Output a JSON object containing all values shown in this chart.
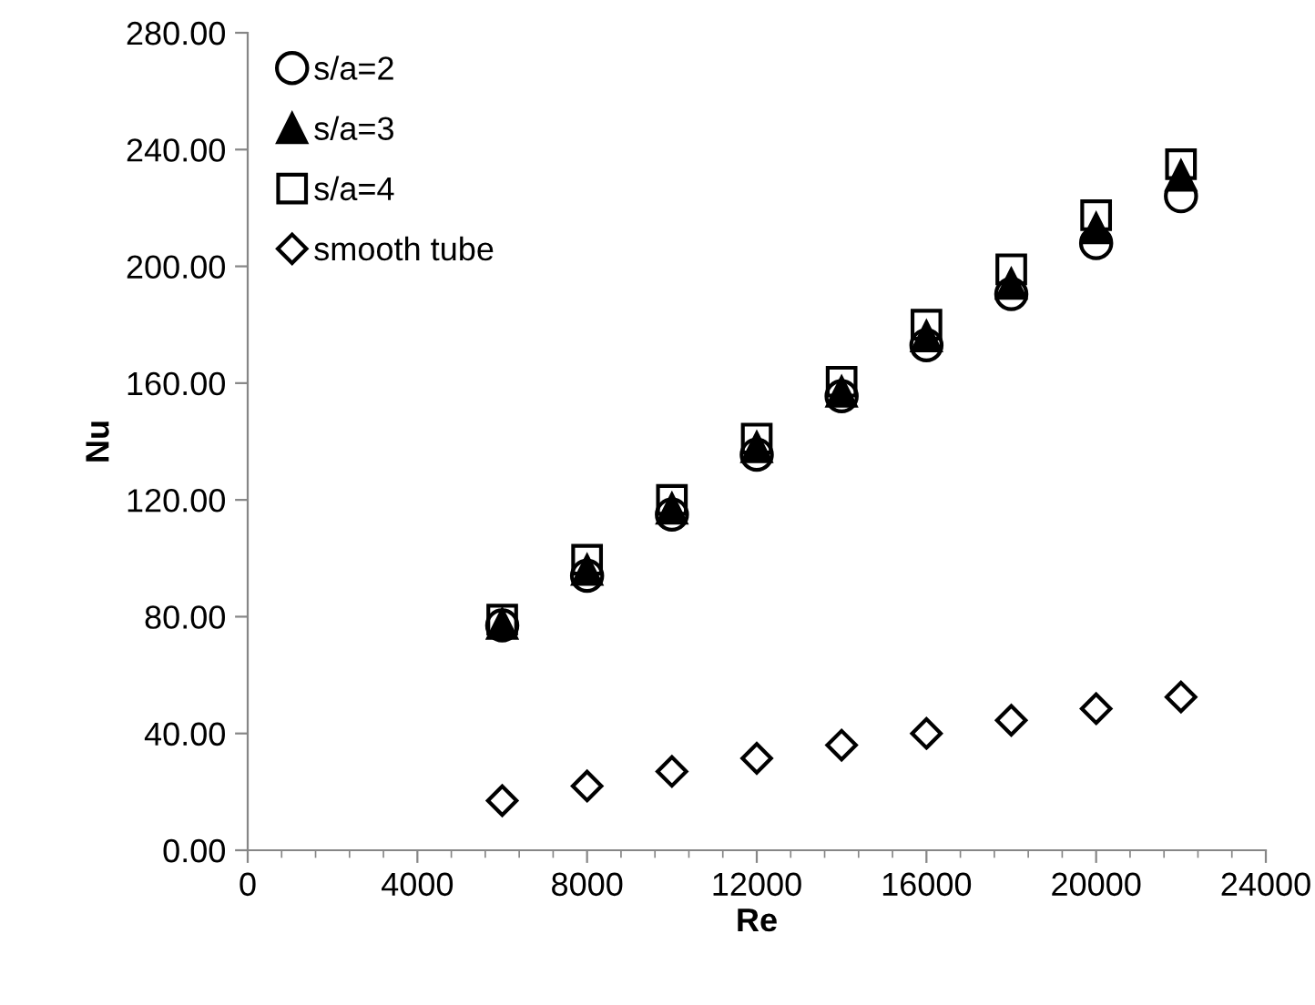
{
  "chart_data": {
    "type": "scatter",
    "xlabel": "Re",
    "ylabel": "Nu",
    "x": [
      6000,
      8000,
      10000,
      12000,
      14000,
      16000,
      18000,
      20000,
      22000
    ],
    "series": [
      {
        "name": "s/a=2",
        "color": "#000000",
        "marker": "circle",
        "values": [
          77,
          94,
          115,
          135.5,
          155.5,
          173,
          190.5,
          208,
          224
        ]
      },
      {
        "name": "s/a=3",
        "color": "#000000",
        "marker": "triangle",
        "values": [
          77.5,
          96,
          117,
          138,
          157,
          176,
          194,
          213,
          231
        ]
      },
      {
        "name": "s/a=4",
        "color": "#000000",
        "marker": "square",
        "values": [
          79,
          99.5,
          120,
          141,
          160.5,
          180,
          199,
          217.5,
          235
        ]
      },
      {
        "name": "smooth tube",
        "color": "#000000",
        "marker": "diamond",
        "values": [
          17,
          22,
          27,
          31.5,
          36,
          40,
          44.5,
          48.5,
          52.5
        ]
      }
    ],
    "xlim": [
      0,
      24000
    ],
    "xticks": [
      0,
      4000,
      8000,
      12000,
      16000,
      20000,
      24000
    ],
    "ylim": [
      0,
      280
    ],
    "yticks": [
      {
        "value": 0,
        "label": "0.00"
      },
      {
        "value": 40,
        "label": "40.00"
      },
      {
        "value": 80,
        "label": "80.00"
      },
      {
        "value": 120,
        "label": "120.00"
      },
      {
        "value": 160,
        "label": "160.00"
      },
      {
        "value": 200,
        "label": "200.00"
      },
      {
        "value": 240,
        "label": "240.00"
      },
      {
        "value": 280,
        "label": "280.00"
      }
    ],
    "grid": false,
    "legend": "top left"
  }
}
